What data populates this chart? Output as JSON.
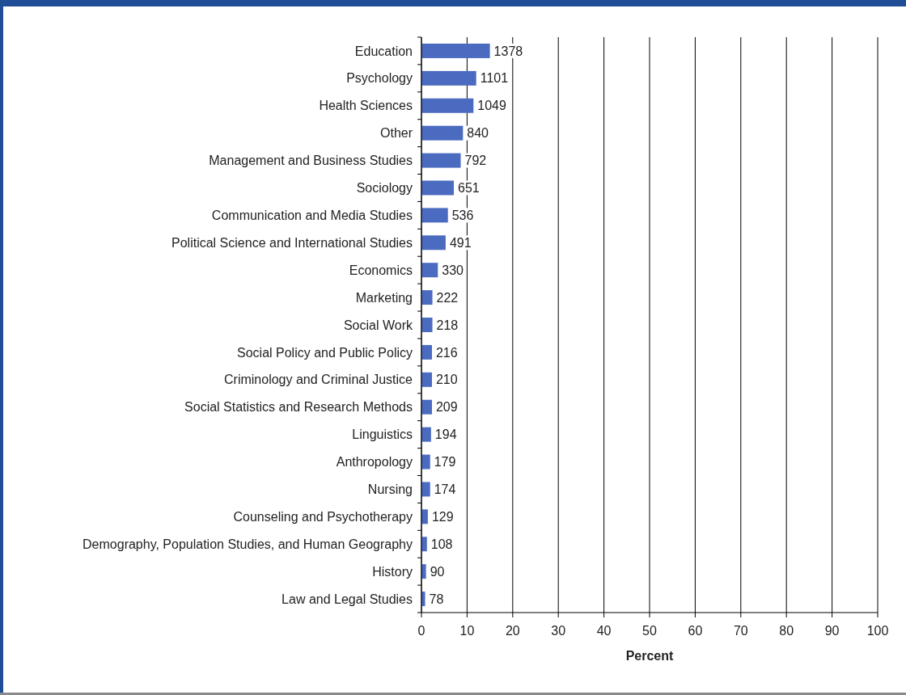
{
  "chart_data": {
    "type": "bar",
    "orientation": "horizontal",
    "xlabel": "Percent",
    "categories": [
      "Education",
      "Psychology",
      "Health Sciences",
      "Other",
      "Management and Business Studies",
      "Sociology",
      "Communication and Media Studies",
      "Political Science and International Studies",
      "Economics",
      "Marketing",
      "Social Work",
      "Social Policy and Public Policy",
      "Criminology and Criminal Justice",
      "Social Statistics and Research Methods",
      "Linguistics",
      "Anthropology",
      "Nursing",
      "Counseling and Psychotherapy",
      "Demography, Population Studies, and Human Geography",
      "History",
      "Law and Legal Studies"
    ],
    "values": [
      15.0,
      12.0,
      11.4,
      9.1,
      8.6,
      7.1,
      5.8,
      5.3,
      3.6,
      2.4,
      2.4,
      2.3,
      2.3,
      2.3,
      2.1,
      1.9,
      1.9,
      1.4,
      1.2,
      1.0,
      0.8
    ],
    "annotations": [
      {
        "text": "1378",
        "x": 15.0,
        "y": "Education"
      },
      {
        "text": "1101",
        "x": 12.0,
        "y": "Psychology"
      },
      {
        "text": "1049",
        "x": 11.4,
        "y": "Health Sciences"
      },
      {
        "text": "840",
        "x": 9.1,
        "y": "Other"
      },
      {
        "text": "792",
        "x": 8.6,
        "y": "Management and Business Studies"
      },
      {
        "text": "651",
        "x": 7.1,
        "y": "Sociology"
      },
      {
        "text": "536",
        "x": 5.8,
        "y": "Communication and Media Studies"
      },
      {
        "text": "491",
        "x": 5.3,
        "y": "Political Science and International Studies"
      },
      {
        "text": "330",
        "x": 3.6,
        "y": "Economics"
      },
      {
        "text": "222",
        "x": 2.4,
        "y": "Marketing"
      },
      {
        "text": "218",
        "x": 2.4,
        "y": "Social Work"
      },
      {
        "text": "216",
        "x": 2.3,
        "y": "Social Policy and Public Policy"
      },
      {
        "text": "210",
        "x": 2.3,
        "y": "Criminology and Criminal Justice"
      },
      {
        "text": "209",
        "x": 2.3,
        "y": "Social Statistics and Research Methods"
      },
      {
        "text": "194",
        "x": 2.1,
        "y": "Linguistics"
      },
      {
        "text": "179",
        "x": 1.9,
        "y": "Anthropology"
      },
      {
        "text": "174",
        "x": 1.9,
        "y": "Nursing"
      },
      {
        "text": "129",
        "x": 1.4,
        "y": "Counseling and Psychotherapy"
      },
      {
        "text": "108",
        "x": 1.2,
        "y": "Demography, Population Studies, and Human Geography"
      },
      {
        "text": "90",
        "x": 1.0,
        "y": "History"
      },
      {
        "text": "78",
        "x": 0.8,
        "y": "Law and Legal Studies"
      }
    ],
    "color": "#4a6bbf",
    "xlim": [
      0,
      100
    ],
    "xticks": [
      0,
      10,
      20,
      30,
      40,
      50,
      60,
      70,
      80,
      90,
      100
    ],
    "grid": "x"
  }
}
